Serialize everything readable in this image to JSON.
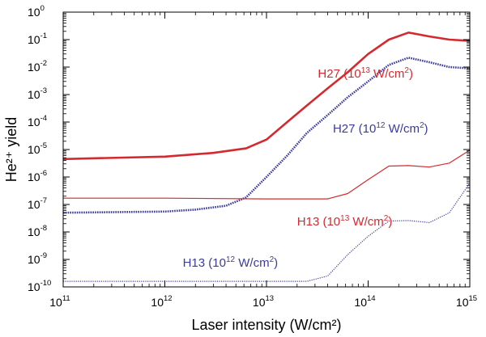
{
  "chart_data": {
    "type": "line",
    "xlabel": "Laser intensity (W/cm²)",
    "ylabel": "He²⁺ yield",
    "x_scale": "log",
    "y_scale": "log",
    "xlim": [
      100000000000.0,
      1000000000000000.0
    ],
    "ylim": [
      1e-10,
      1
    ],
    "x_ticks": [
      {
        "value": 100000000000.0,
        "base": "10",
        "exp": "11"
      },
      {
        "value": 1000000000000.0,
        "base": "10",
        "exp": "12"
      },
      {
        "value": 10000000000000.0,
        "base": "10",
        "exp": "13"
      },
      {
        "value": 100000000000000.0,
        "base": "10",
        "exp": "14"
      },
      {
        "value": 1000000000000000.0,
        "base": "10",
        "exp": "15"
      }
    ],
    "y_ticks": [
      {
        "value": 1,
        "base": "10",
        "exp": "0"
      },
      {
        "value": 0.1,
        "base": "10",
        "exp": "-1"
      },
      {
        "value": 0.01,
        "base": "10",
        "exp": "-2"
      },
      {
        "value": 0.001,
        "base": "10",
        "exp": "-3"
      },
      {
        "value": 0.0001,
        "base": "10",
        "exp": "-4"
      },
      {
        "value": 1e-05,
        "base": "10",
        "exp": "-5"
      },
      {
        "value": 1e-06,
        "base": "10",
        "exp": "-6"
      },
      {
        "value": 1e-07,
        "base": "10",
        "exp": "-7"
      },
      {
        "value": 1e-08,
        "base": "10",
        "exp": "-8"
      },
      {
        "value": 1e-09,
        "base": "10",
        "exp": "-9"
      },
      {
        "value": 1e-10,
        "base": "10",
        "exp": "-10"
      }
    ],
    "series": [
      {
        "name": "H27 (10¹³ W/cm²)",
        "color": "#d42a2f",
        "style": "solid",
        "weight": "thick",
        "x": [
          100000000000.0,
          1000000000000.0,
          3000000000000.0,
          6300000000000.0,
          10000000000000.0,
          16000000000000.0,
          25000000000000.0,
          40000000000000.0,
          63000000000000.0,
          100000000000000.0,
          160000000000000.0,
          250000000000000.0,
          400000000000000.0,
          630000000000000.0,
          1000000000000000.0
        ],
        "y": [
          4.5e-06,
          5.5e-06,
          7.5e-06,
          1.1e-05,
          2.3e-05,
          0.0001,
          0.0004,
          0.0017,
          0.0065,
          0.03,
          0.1,
          0.18,
          0.13,
          0.1,
          0.09
        ]
      },
      {
        "name": "H27 (10¹² W/cm²)",
        "color": "#3c3c9a",
        "style": "dotted",
        "weight": "thick",
        "x": [
          100000000000.0,
          1000000000000.0,
          2000000000000.0,
          4000000000000.0,
          6300000000000.0,
          10000000000000.0,
          16000000000000.0,
          25000000000000.0,
          40000000000000.0,
          63000000000000.0,
          100000000000000.0,
          160000000000000.0,
          250000000000000.0,
          400000000000000.0,
          630000000000000.0,
          1000000000000000.0
        ],
        "y": [
          5e-08,
          5.5e-08,
          6.5e-08,
          9e-08,
          1.8e-07,
          1e-06,
          6e-06,
          4e-05,
          0.00018,
          0.0008,
          0.003,
          0.012,
          0.022,
          0.015,
          0.01,
          0.009
        ]
      },
      {
        "name": "H13 (10¹³ W/cm²)",
        "color": "#d42a2f",
        "style": "solid",
        "weight": "thin",
        "x": [
          100000000000.0,
          1000000000000.0,
          10000000000000.0,
          40000000000000.0,
          63000000000000.0,
          100000000000000.0,
          160000000000000.0,
          250000000000000.0,
          400000000000000.0,
          630000000000000.0,
          1000000000000000.0
        ],
        "y": [
          1.7e-07,
          1.7e-07,
          1.6e-07,
          1.6e-07,
          2.5e-07,
          8e-07,
          2.5e-06,
          2.6e-06,
          2.3e-06,
          3.2e-06,
          9.5e-06
        ]
      },
      {
        "name": "H13 (10¹² W/cm²)",
        "color": "#3c3c9a",
        "style": "dotted",
        "weight": "thin",
        "x": [
          100000000000.0,
          1000000000000.0,
          10000000000000.0,
          25000000000000.0,
          40000000000000.0,
          63000000000000.0,
          100000000000000.0,
          160000000000000.0,
          250000000000000.0,
          400000000000000.0,
          630000000000000.0,
          1000000000000000.0
        ],
        "y": [
          1.6e-10,
          1.6e-10,
          1.6e-10,
          1.6e-10,
          2.5e-10,
          1.5e-09,
          7e-09,
          2.5e-08,
          2.6e-08,
          2.2e-08,
          5e-08,
          6e-07
        ]
      }
    ],
    "annotations": [
      {
        "name": "annot-h27-1e13",
        "prefix": "H27 (10",
        "exp": "13",
        "mid": " W/cm",
        "exp2": "2",
        "suffix": ")",
        "color": "#d42a2f",
        "x": 32000000000000.0,
        "y": 0.0042
      },
      {
        "name": "annot-h27-1e12",
        "prefix": "H27 (10",
        "exp": "12",
        "mid": " W/cm",
        "exp2": "2",
        "suffix": ")",
        "color": "#3c3c9a",
        "x": 45000000000000.0,
        "y": 4.2e-05
      },
      {
        "name": "annot-h13-1e13",
        "prefix": "H13 (10",
        "exp": "13",
        "mid": " W/cm",
        "exp2": "2",
        "suffix": ")",
        "color": "#d42a2f",
        "x": 20000000000000.0,
        "y": 1.7e-08
      },
      {
        "name": "annot-h13-1e12",
        "prefix": "H13 (10",
        "exp": "12",
        "mid": " W/cm",
        "exp2": "2",
        "suffix": ")",
        "color": "#3c3c9a",
        "x": 1500000000000.0,
        "y": 5.5e-10
      }
    ],
    "grid": false,
    "legend": "none"
  }
}
